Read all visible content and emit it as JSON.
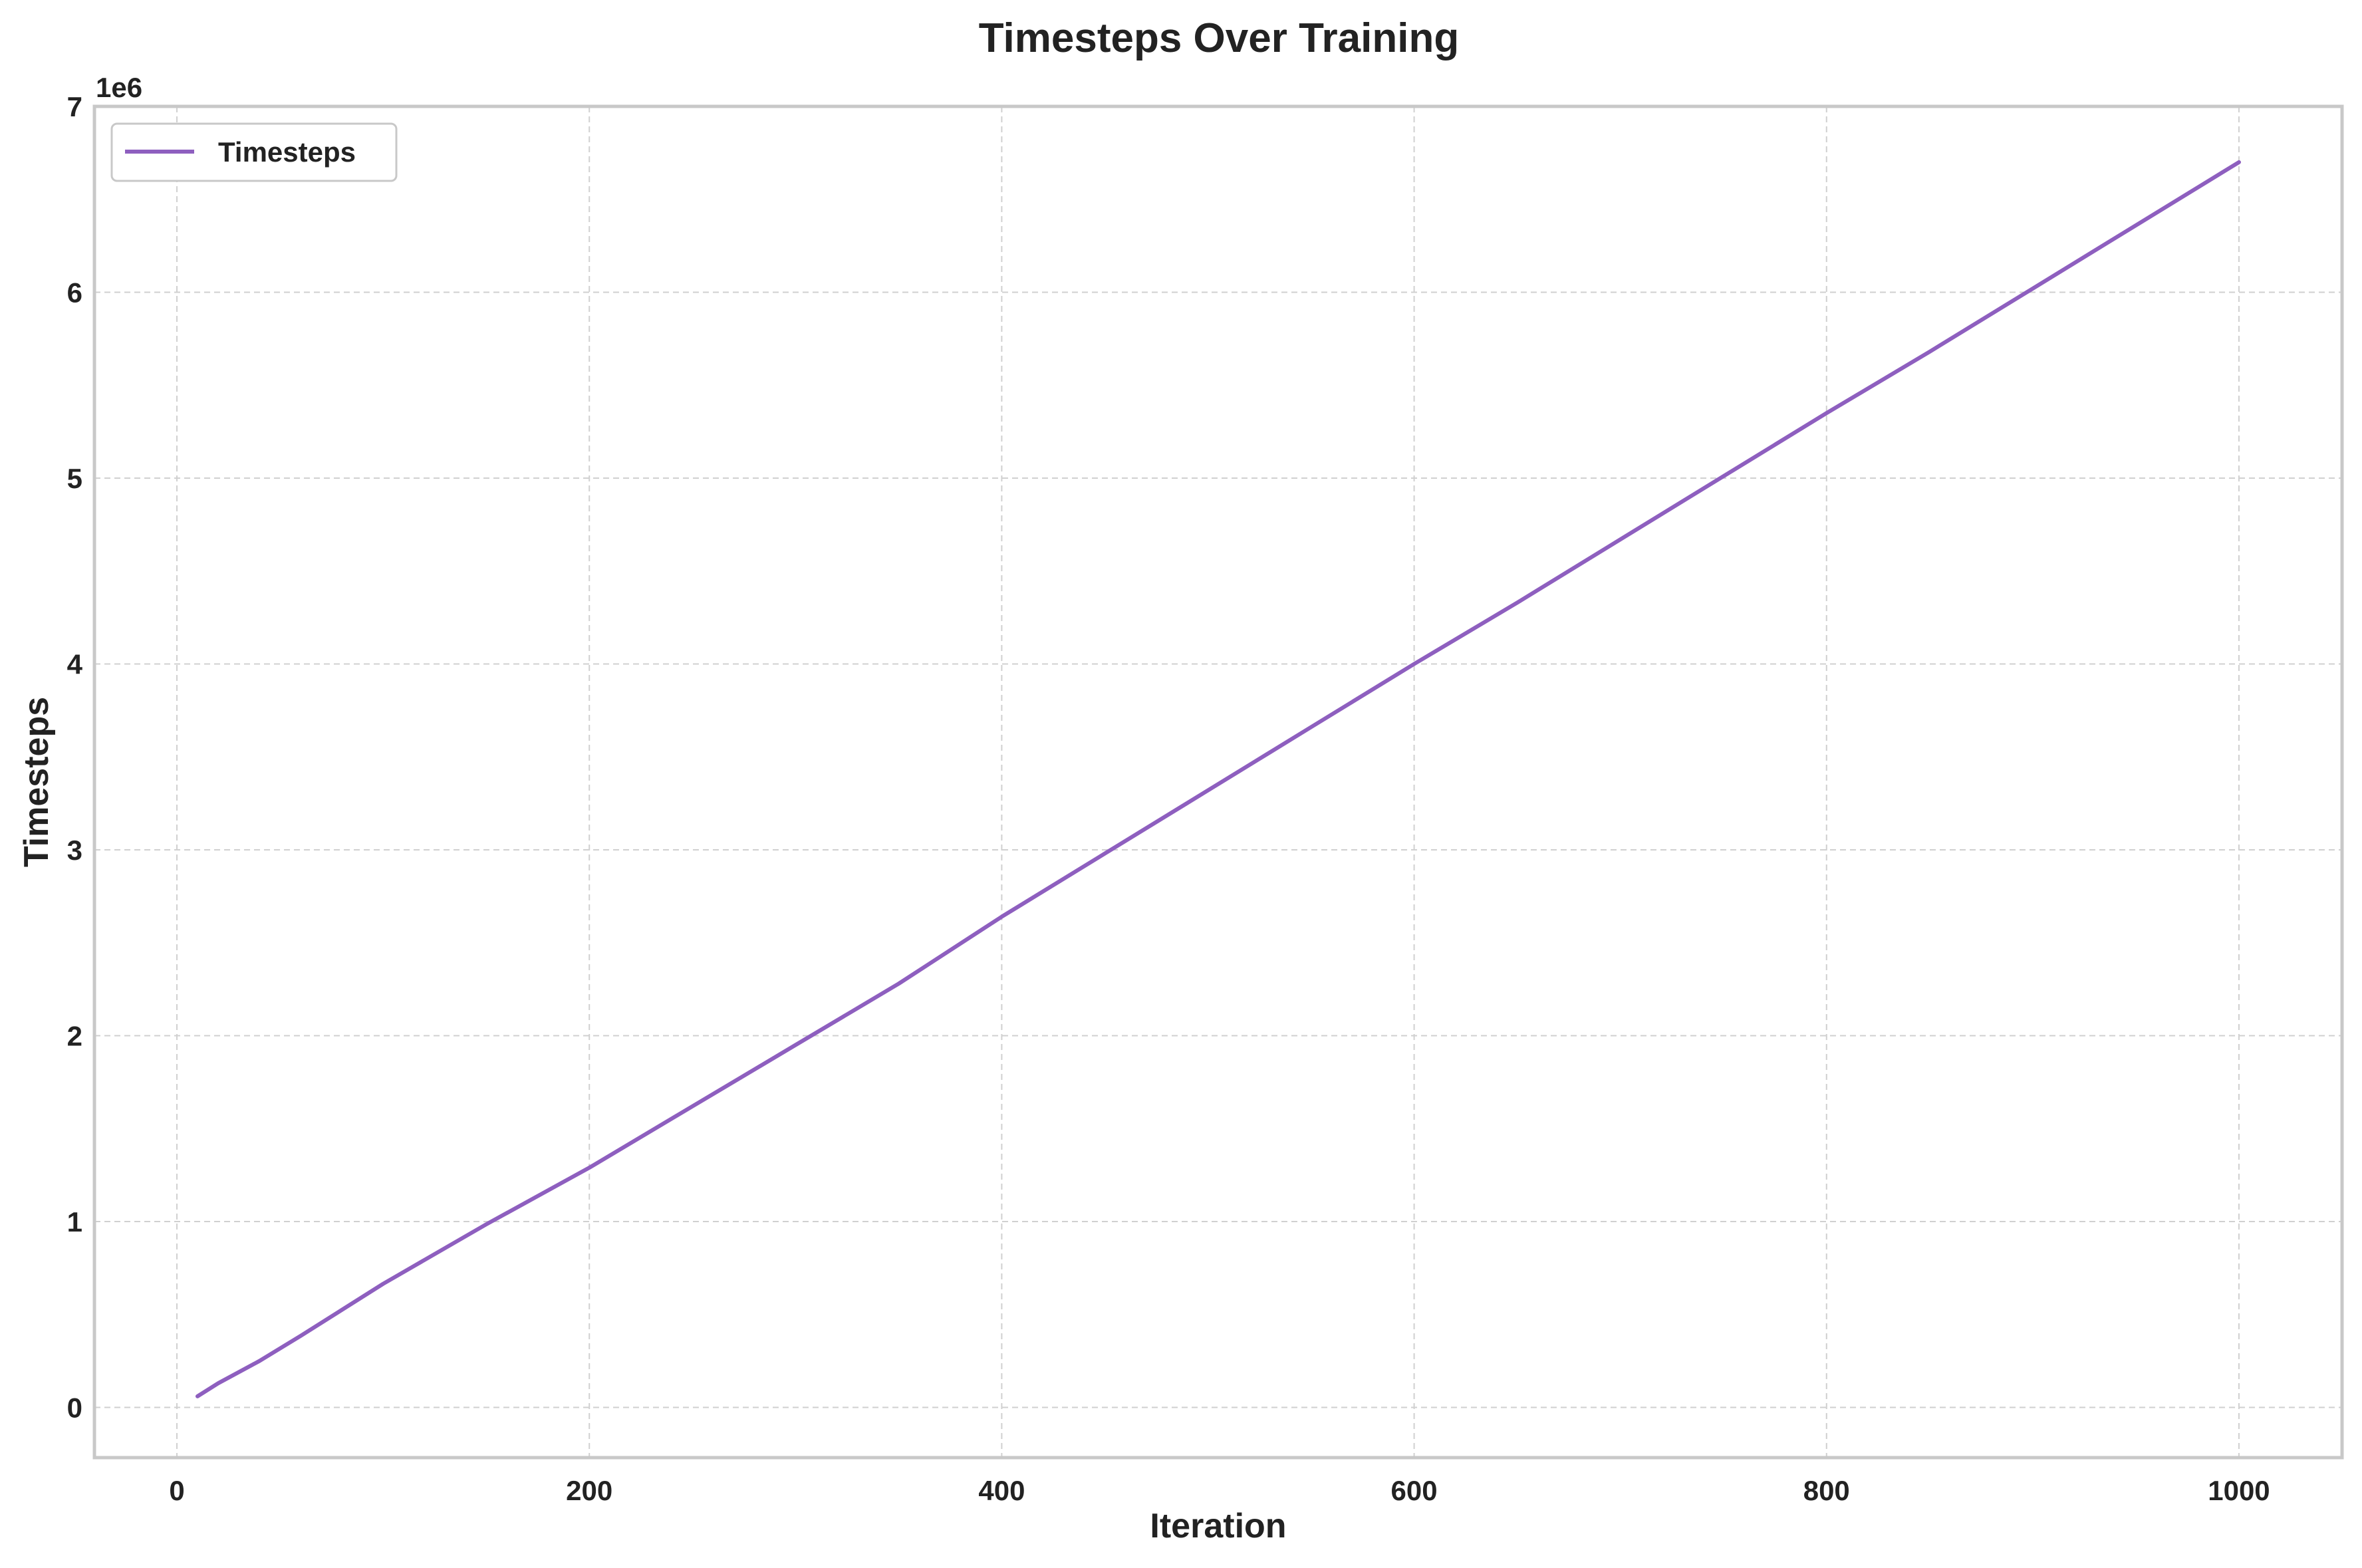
{
  "chart_data": {
    "type": "line",
    "title": "Timesteps Over Training",
    "xlabel": "Iteration",
    "ylabel": "Timesteps",
    "y_offset_label": "1e6",
    "xlim": [
      -40,
      1050
    ],
    "ylim": [
      -270000,
      7000000
    ],
    "x_ticks": [
      0,
      200,
      400,
      600,
      800,
      1000
    ],
    "x_tick_labels": [
      "0",
      "200",
      "400",
      "600",
      "800",
      "1000"
    ],
    "y_ticks": [
      0,
      1000000,
      2000000,
      3000000,
      4000000,
      5000000,
      6000000,
      7000000
    ],
    "y_tick_labels": [
      "0",
      "1",
      "2",
      "3",
      "4",
      "5",
      "6",
      "7"
    ],
    "grid": true,
    "legend_position": "top-left",
    "series": [
      {
        "name": "Timesteps",
        "color": "#8e5fbf",
        "x": [
          10,
          20,
          40,
          60,
          80,
          100,
          150,
          200,
          250,
          300,
          350,
          400,
          450,
          500,
          550,
          600,
          650,
          700,
          750,
          800,
          850,
          900,
          950,
          1000
        ],
        "y": [
          60000,
          130000,
          250000,
          385000,
          525000,
          665000,
          985000,
          1290000,
          1620000,
          1950000,
          2280000,
          2640000,
          2980000,
          3320000,
          3660000,
          4000000,
          4330000,
          4670000,
          5010000,
          5350000,
          5680000,
          6020000,
          6360000,
          6700000
        ]
      }
    ]
  }
}
